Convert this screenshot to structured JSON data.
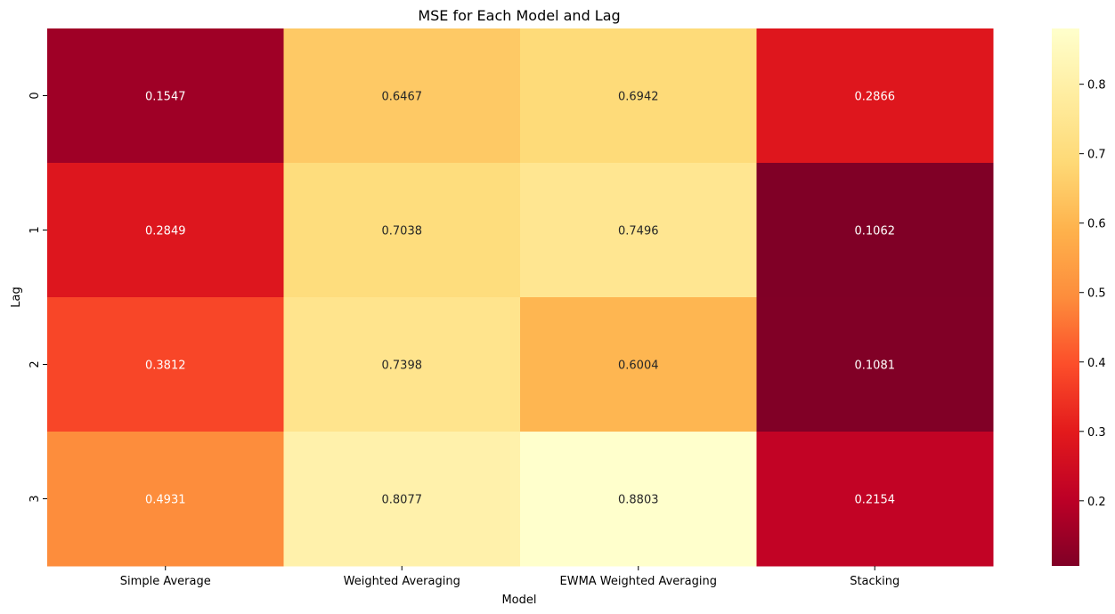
{
  "chart_data": {
    "type": "heatmap",
    "title": "MSE for Each Model and Lag",
    "xlabel": "Model",
    "ylabel": "Lag",
    "x_categories": [
      "Simple Average",
      "Weighted Averaging",
      "EWMA Weighted Averaging",
      "Stacking"
    ],
    "y_categories": [
      "0",
      "1",
      "2",
      "3"
    ],
    "values": [
      [
        0.1547,
        0.6467,
        0.6942,
        0.2866
      ],
      [
        0.2849,
        0.7038,
        0.7496,
        0.1062
      ],
      [
        0.3812,
        0.7398,
        0.6004,
        0.1081
      ],
      [
        0.4931,
        0.8077,
        0.8803,
        0.2154
      ]
    ],
    "value_labels": [
      [
        "0.1547",
        "0.6467",
        "0.6942",
        "0.2866"
      ],
      [
        "0.2849",
        "0.7038",
        "0.7496",
        "0.1062"
      ],
      [
        "0.3812",
        "0.7398",
        "0.6004",
        "0.1081"
      ],
      [
        "0.4931",
        "0.8077",
        "0.8803",
        "0.2154"
      ]
    ],
    "colormap": "YlOrRd_r",
    "colorbar": {
      "vmin": 0.1062,
      "vmax": 0.8803,
      "ticks": [
        "0.2",
        "0.3",
        "0.4",
        "0.5",
        "0.6",
        "0.7",
        "0.8"
      ]
    }
  }
}
